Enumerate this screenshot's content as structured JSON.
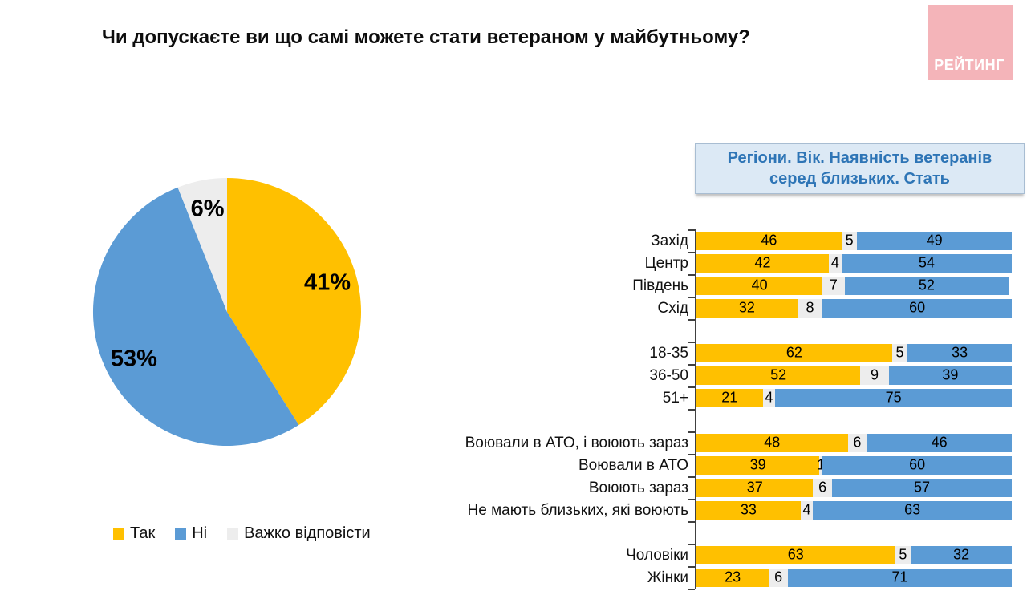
{
  "page": {
    "title": "Чи допускаєте ви що самі можете стати ветераном у майбутньому?"
  },
  "logo": {
    "text": "РЕЙТИНГ",
    "bg_color": "#f4b4b9",
    "text_color": "#ffffff"
  },
  "colors": {
    "yes": "#FFC000",
    "no": "#5B9BD5",
    "dk": "#EDEDED",
    "panel_bg": "#dce9f5",
    "panel_text": "#2E75B6"
  },
  "chart_data": [
    {
      "type": "pie",
      "legend_position": "bottom-left",
      "slices": [
        {
          "label": "Так",
          "value": 41,
          "display": "41%",
          "color": "#FFC000"
        },
        {
          "label": "Ні",
          "value": 53,
          "display": "53%",
          "color": "#5B9BD5"
        },
        {
          "label": "Важко відповісти",
          "value": 6,
          "display": "6%",
          "color": "#EDEDED"
        }
      ],
      "start_angle_deg": 0,
      "direction": "clockwise"
    },
    {
      "type": "bar",
      "subtype": "horizontal-stacked",
      "title": "Регіони. Вік. Наявність ветеранів серед близьких. Стать",
      "series_names": [
        "Так",
        "Важко відповісти",
        "Ні"
      ],
      "xlim": [
        0,
        100
      ],
      "grid": false,
      "groups": [
        {
          "name": "Регіони",
          "rows": [
            {
              "label": "Захід",
              "values": [
                46,
                5,
                49
              ]
            },
            {
              "label": "Центр",
              "values": [
                42,
                4,
                54
              ]
            },
            {
              "label": "Південь",
              "values": [
                40,
                7,
                52
              ]
            },
            {
              "label": "Схід",
              "values": [
                32,
                8,
                60
              ]
            }
          ]
        },
        {
          "name": "Вік",
          "rows": [
            {
              "label": "18-35",
              "values": [
                62,
                5,
                33
              ]
            },
            {
              "label": "36-50",
              "values": [
                52,
                9,
                39
              ]
            },
            {
              "label": "51+",
              "values": [
                21,
                4,
                75
              ]
            }
          ]
        },
        {
          "name": "Наявність ветеранів серед близьких",
          "rows": [
            {
              "label": "Воювали в АТО, і воюють зараз",
              "values": [
                48,
                6,
                46
              ]
            },
            {
              "label": "Воювали в АТО",
              "values": [
                39,
                1,
                60
              ]
            },
            {
              "label": "Воюють зараз",
              "values": [
                37,
                6,
                57
              ]
            },
            {
              "label": "Не мають близьких, які воюють",
              "values": [
                33,
                4,
                63
              ]
            }
          ]
        },
        {
          "name": "Стать",
          "rows": [
            {
              "label": "Чоловіки",
              "values": [
                63,
                5,
                32
              ]
            },
            {
              "label": "Жінки",
              "values": [
                23,
                6,
                71
              ]
            }
          ]
        }
      ]
    }
  ]
}
